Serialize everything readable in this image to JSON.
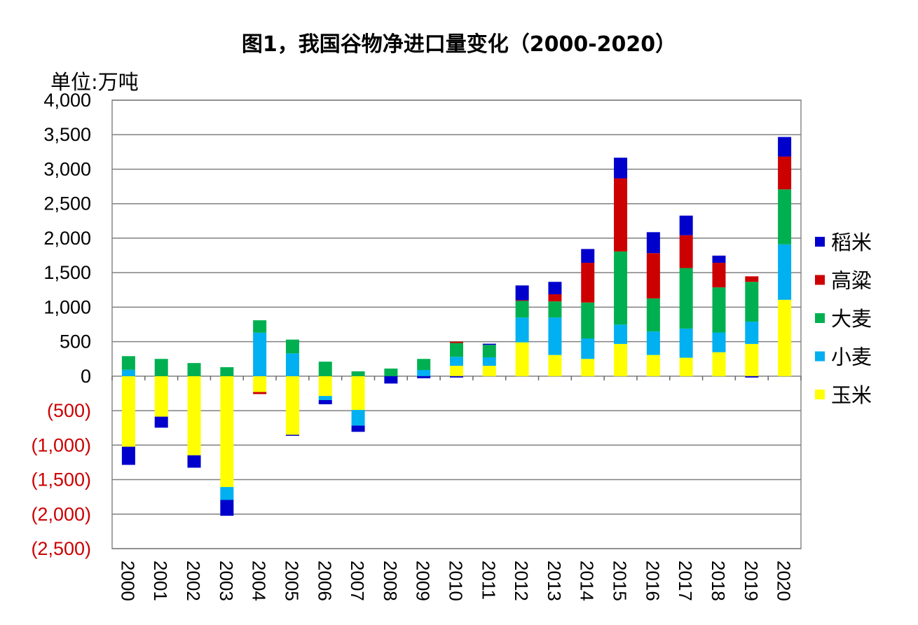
{
  "chart_data": {
    "type": "bar",
    "stacked": true,
    "title": "图1，我国谷物净进口量变化（2000-2020）",
    "ylabel": "单位:万吨",
    "xlabel": "",
    "ylim": [
      -2500,
      4000
    ],
    "yticks": [
      4000,
      3500,
      3000,
      2500,
      2000,
      1500,
      1000,
      500,
      0,
      -500,
      -1000,
      -1500,
      -2000,
      -2500
    ],
    "ytick_labels": [
      "4,000",
      "3,500",
      "3,000",
      "2,500",
      "2,000",
      "1,500",
      "1,000",
      "500",
      "0",
      "(500)",
      "(1,000)",
      "(1,500)",
      "(2,000)",
      "(2,500)"
    ],
    "negative_label_color": "#CC0000",
    "grid": true,
    "legend_position": "right",
    "categories": [
      "2000",
      "2001",
      "2002",
      "2003",
      "2004",
      "2005",
      "2006",
      "2007",
      "2008",
      "2009",
      "2010",
      "2011",
      "2012",
      "2013",
      "2014",
      "2015",
      "2016",
      "2017",
      "2018",
      "2019",
      "2020"
    ],
    "series": [
      {
        "name": "玉米",
        "color": "#FFFF00",
        "values": [
          -1023,
          -587,
          -1147,
          -1607,
          -230,
          -850,
          -287,
          -490,
          0,
          0,
          150,
          150,
          490,
          307,
          250,
          467,
          307,
          267,
          347,
          467,
          1107
        ]
      },
      {
        "name": "小麦",
        "color": "#00B0F0",
        "values": [
          93,
          0,
          0,
          -187,
          630,
          330,
          -60,
          -227,
          0,
          90,
          130,
          123,
          360,
          543,
          297,
          280,
          340,
          423,
          286,
          323,
          803
        ]
      },
      {
        "name": "大麦",
        "color": "#00B050",
        "values": [
          197,
          250,
          190,
          130,
          180,
          200,
          210,
          70,
          110,
          160,
          200,
          180,
          243,
          233,
          520,
          1060,
          480,
          877,
          654,
          577,
          797
        ]
      },
      {
        "name": "高粱",
        "color": "#CC0000",
        "values": [
          0,
          0,
          0,
          0,
          -30,
          0,
          0,
          0,
          0,
          0,
          20,
          0,
          8,
          104,
          576,
          1060,
          656,
          476,
          356,
          80,
          476
        ]
      },
      {
        "name": "稻米",
        "color": "#0000CC",
        "values": [
          -263,
          -160,
          -180,
          -230,
          0,
          -15,
          -60,
          -90,
          -107,
          -30,
          -20,
          17,
          214,
          180,
          200,
          300,
          304,
          284,
          104,
          -20,
          284
        ]
      }
    ]
  }
}
